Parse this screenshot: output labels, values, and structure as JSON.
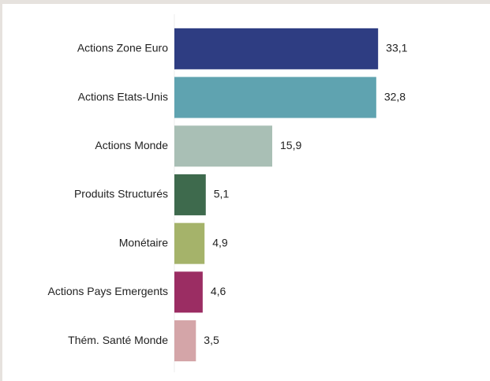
{
  "chart_data": {
    "type": "barh",
    "categories": [
      "Actions Zone Euro",
      "Actions Etats-Unis",
      "Actions Monde",
      "Produits Structurés",
      "Monétaire",
      "Actions Pays Emergents",
      "Thém. Santé Monde"
    ],
    "values": [
      33.1,
      32.8,
      15.9,
      5.1,
      4.9,
      4.6,
      3.5
    ],
    "value_labels": [
      "33,1",
      "32,8",
      "15,9",
      "5,1",
      "4,9",
      "4,6",
      "3,5"
    ],
    "colors": [
      "#2e3d82",
      "#5fa3b0",
      "#a9bfb5",
      "#3e6a4d",
      "#a5b36a",
      "#9b2d63",
      "#d4a5a8"
    ],
    "xlim": [
      0,
      40
    ]
  }
}
